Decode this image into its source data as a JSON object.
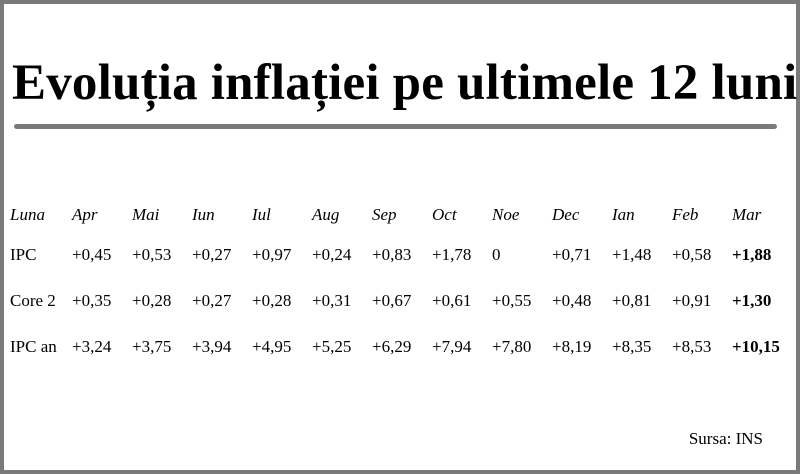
{
  "title": "Evoluția inflației pe ultimele 12 luni",
  "source": "Sursa: INS",
  "table": {
    "header": [
      "Luna",
      "Apr",
      "Mai",
      "Iun",
      "Iul",
      "Aug",
      "Sep",
      "Oct",
      "Noe",
      "Dec",
      "Ian",
      "Feb",
      "Mar"
    ],
    "rows": [
      {
        "label": "IPC",
        "values": [
          "+0,45",
          "+0,53",
          "+0,27",
          "+0,97",
          "+0,24",
          "+0,83",
          "+1,78",
          "0",
          "+0,71",
          "+1,48",
          "+0,58",
          "+1,88"
        ]
      },
      {
        "label": "Core 2",
        "values": [
          "+0,35",
          "+0,28",
          "+0,27",
          "+0,28",
          "+0,31",
          "+0,67",
          "+0,61",
          "+0,55",
          "+0,48",
          "+0,81",
          "+0,91",
          "+1,30"
        ]
      },
      {
        "label": "IPC an",
        "values": [
          "+3,24",
          "+3,75",
          "+3,94",
          "+4,95",
          "+5,25",
          "+6,29",
          "+7,94",
          "+7,80",
          "+8,19",
          "+8,35",
          "+8,53",
          "+10,15"
        ]
      }
    ]
  },
  "colors": {
    "frame": "#7a7a7a",
    "rule": "#7a7a7a",
    "text": "#000000",
    "background": "#ffffff"
  }
}
